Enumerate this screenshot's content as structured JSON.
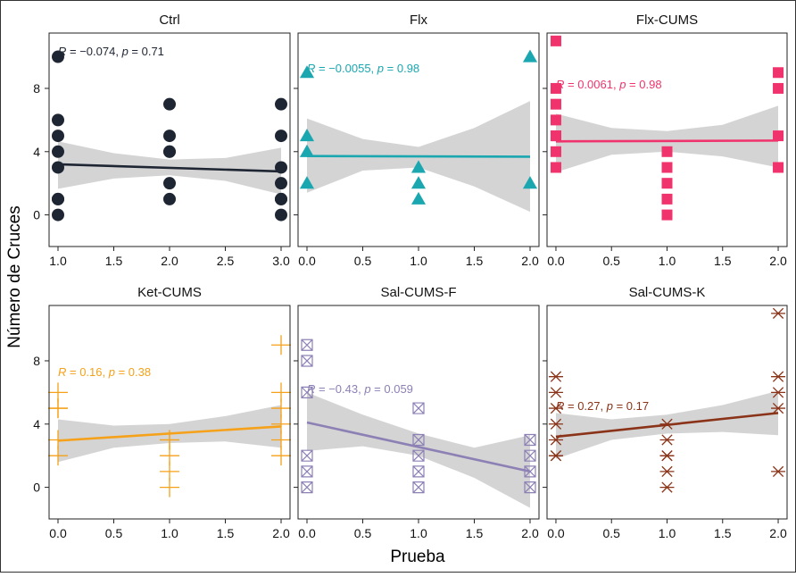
{
  "figure": {
    "xlabel": "Prueba",
    "ylabel": "Número de Cruces"
  },
  "chart_data": [
    {
      "type": "scatter",
      "title": "Ctrl",
      "color": "#1f2633",
      "marker": "circle",
      "annotation": {
        "r": "−0.074",
        "p": "0.71"
      },
      "xlim": [
        0.92,
        3.08
      ],
      "ylim": [
        -2,
        11.5
      ],
      "xticks": [
        1.0,
        1.5,
        2.0,
        2.5,
        3.0
      ],
      "xtick_labels": [
        "1.0",
        "1.5",
        "2.0",
        "2.5",
        "3.0"
      ],
      "yticks": [
        0,
        4,
        8
      ],
      "ytick_labels": [
        "0",
        "4",
        "8"
      ],
      "points": {
        "x": [
          1,
          1,
          1,
          1,
          1,
          1,
          1,
          1,
          2,
          2,
          2,
          2,
          2,
          2,
          3,
          3,
          3,
          3,
          3,
          3,
          3
        ],
        "y": [
          10,
          6,
          5,
          4,
          3,
          1,
          0,
          1,
          7,
          5,
          4,
          2,
          1,
          4,
          7,
          5,
          3,
          2,
          1,
          0,
          1
        ]
      },
      "fit": {
        "x": [
          1,
          3
        ],
        "y": [
          3.2,
          2.75
        ]
      },
      "band": {
        "x": [
          1,
          1.5,
          2,
          2.5,
          3
        ],
        "lower": [
          1.65,
          2.3,
          2.5,
          2.15,
          1.3
        ],
        "upper": [
          4.65,
          3.9,
          3.5,
          3.6,
          4.25
        ]
      }
    },
    {
      "type": "scatter",
      "title": "Flx",
      "color": "#1aa7b0",
      "marker": "triangle",
      "annotation": {
        "r": "−0.0055",
        "p": "0.98"
      },
      "xlim": [
        -0.08,
        2.08
      ],
      "ylim": [
        -2,
        11.5
      ],
      "xticks": [
        0.0,
        0.5,
        1.0,
        1.5,
        2.0
      ],
      "xtick_labels": [
        "0.0",
        "0.5",
        "1.0",
        "1.5",
        "2.0"
      ],
      "yticks": [
        0,
        4,
        8
      ],
      "ytick_labels": [
        "0",
        "4",
        "8"
      ],
      "points": {
        "x": [
          0,
          0,
          0,
          0,
          1,
          1,
          1,
          2,
          2
        ],
        "y": [
          9,
          5,
          4,
          2,
          3,
          2,
          1,
          10,
          2
        ]
      },
      "fit": {
        "x": [
          0,
          2
        ],
        "y": [
          3.72,
          3.68
        ]
      },
      "band": {
        "x": [
          0,
          0.5,
          1,
          1.5,
          2
        ],
        "lower": [
          1.4,
          2.8,
          3.0,
          1.8,
          0.2
        ],
        "upper": [
          6.1,
          4.8,
          4.3,
          5.5,
          7.2
        ]
      }
    },
    {
      "type": "scatter",
      "title": "Flx-CUMS",
      "color": "#f0336c",
      "marker": "square",
      "annotation": {
        "r": "0.0061",
        "p": "0.98"
      },
      "xlim": [
        -0.08,
        2.08
      ],
      "ylim": [
        -2,
        11.5
      ],
      "xticks": [
        0.0,
        0.5,
        1.0,
        1.5,
        2.0
      ],
      "xtick_labels": [
        "0.0",
        "0.5",
        "1.0",
        "1.5",
        "2.0"
      ],
      "yticks": [
        0,
        4,
        8
      ],
      "ytick_labels": [
        "0",
        "4",
        "8"
      ],
      "points": {
        "x": [
          0,
          0,
          0,
          0,
          0,
          0,
          0,
          0,
          1,
          1,
          1,
          1,
          1,
          1,
          2,
          2,
          2,
          2
        ],
        "y": [
          11,
          8,
          7,
          6,
          5,
          4,
          3,
          5,
          4,
          3,
          2,
          1,
          0,
          3,
          9,
          8,
          5,
          3
        ]
      },
      "fit": {
        "x": [
          0,
          2
        ],
        "y": [
          4.65,
          4.7
        ]
      },
      "band": {
        "x": [
          0,
          0.5,
          1,
          1.5,
          2
        ],
        "lower": [
          2.7,
          3.8,
          4.0,
          3.7,
          3.0
        ],
        "upper": [
          6.4,
          5.5,
          5.3,
          5.7,
          6.9
        ]
      }
    },
    {
      "type": "scatter",
      "title": "Ket-CUMS",
      "color": "#f5a11a",
      "marker": "plus",
      "annotation": {
        "r": "0.16",
        "p": "0.38"
      },
      "xlim": [
        -0.08,
        2.08
      ],
      "ylim": [
        -2,
        11.5
      ],
      "xticks": [
        0.0,
        0.5,
        1.0,
        1.5,
        2.0
      ],
      "xtick_labels": [
        "0.0",
        "0.5",
        "1.0",
        "1.5",
        "2.0"
      ],
      "yticks": [
        0,
        4,
        8
      ],
      "ytick_labels": [
        "0",
        "4",
        "8"
      ],
      "points": {
        "x": [
          0,
          0,
          0,
          0,
          0,
          1,
          1,
          1,
          1,
          1,
          2,
          2,
          2,
          2,
          2,
          2
        ],
        "y": [
          6,
          5,
          3,
          2,
          5,
          3,
          2,
          1,
          0,
          3,
          9,
          6,
          5,
          4,
          3,
          2
        ]
      },
      "fit": {
        "x": [
          0,
          2
        ],
        "y": [
          2.95,
          3.85
        ]
      },
      "band": {
        "x": [
          0,
          0.5,
          1,
          1.5,
          2
        ],
        "lower": [
          1.6,
          2.5,
          2.8,
          2.9,
          2.5
        ],
        "upper": [
          4.3,
          3.9,
          4.0,
          4.5,
          5.2
        ]
      }
    },
    {
      "type": "scatter",
      "title": "Sal-CUMS-F",
      "color": "#8d80b5",
      "marker": "boxx",
      "annotation": {
        "r": "−0.43",
        "p": "0.059"
      },
      "xlim": [
        -0.08,
        2.08
      ],
      "ylim": [
        -2,
        11.5
      ],
      "xticks": [
        0.0,
        0.5,
        1.0,
        1.5,
        2.0
      ],
      "xtick_labels": [
        "0.0",
        "0.5",
        "1.0",
        "1.5",
        "2.0"
      ],
      "yticks": [
        0,
        4,
        8
      ],
      "ytick_labels": [
        "0",
        "4",
        "8"
      ],
      "points": {
        "x": [
          0,
          0,
          0,
          0,
          0,
          0,
          1,
          1,
          1,
          1,
          1,
          2,
          2,
          2,
          2
        ],
        "y": [
          9,
          8,
          6,
          2,
          1,
          0,
          5,
          3,
          2,
          1,
          0,
          3,
          2,
          1,
          0
        ]
      },
      "fit": {
        "x": [
          0,
          2
        ],
        "y": [
          4.1,
          1.0
        ]
      },
      "band": {
        "x": [
          0,
          0.5,
          1,
          1.5,
          2
        ],
        "lower": [
          2.3,
          2.6,
          2.0,
          0.6,
          -1.3
        ],
        "upper": [
          6.0,
          4.6,
          3.4,
          2.5,
          3.3
        ]
      }
    },
    {
      "type": "scatter",
      "title": "Sal-CUMS-K",
      "color": "#8a3318",
      "marker": "asterisk",
      "annotation": {
        "r": "0.27",
        "p": "0.17"
      },
      "xlim": [
        -0.08,
        2.08
      ],
      "ylim": [
        -2,
        11.5
      ],
      "xticks": [
        0.0,
        0.5,
        1.0,
        1.5,
        2.0
      ],
      "xtick_labels": [
        "0.0",
        "0.5",
        "1.0",
        "1.5",
        "2.0"
      ],
      "yticks": [
        0,
        4,
        8
      ],
      "ytick_labels": [
        "0",
        "4",
        "8"
      ],
      "points": {
        "x": [
          0,
          0,
          0,
          0,
          0,
          0,
          0,
          1,
          1,
          1,
          1,
          1,
          1,
          2,
          2,
          2,
          2,
          2
        ],
        "y": [
          7,
          6,
          5,
          4,
          3,
          2,
          2,
          4,
          3,
          2,
          1,
          0,
          2,
          11,
          7,
          6,
          5,
          1
        ]
      },
      "fit": {
        "x": [
          0,
          2
        ],
        "y": [
          3.2,
          4.7
        ]
      },
      "band": {
        "x": [
          0,
          0.5,
          1,
          1.5,
          2
        ],
        "lower": [
          1.8,
          3.0,
          3.4,
          3.5,
          3.3
        ],
        "upper": [
          4.7,
          4.3,
          4.6,
          5.2,
          6.1
        ]
      }
    }
  ]
}
